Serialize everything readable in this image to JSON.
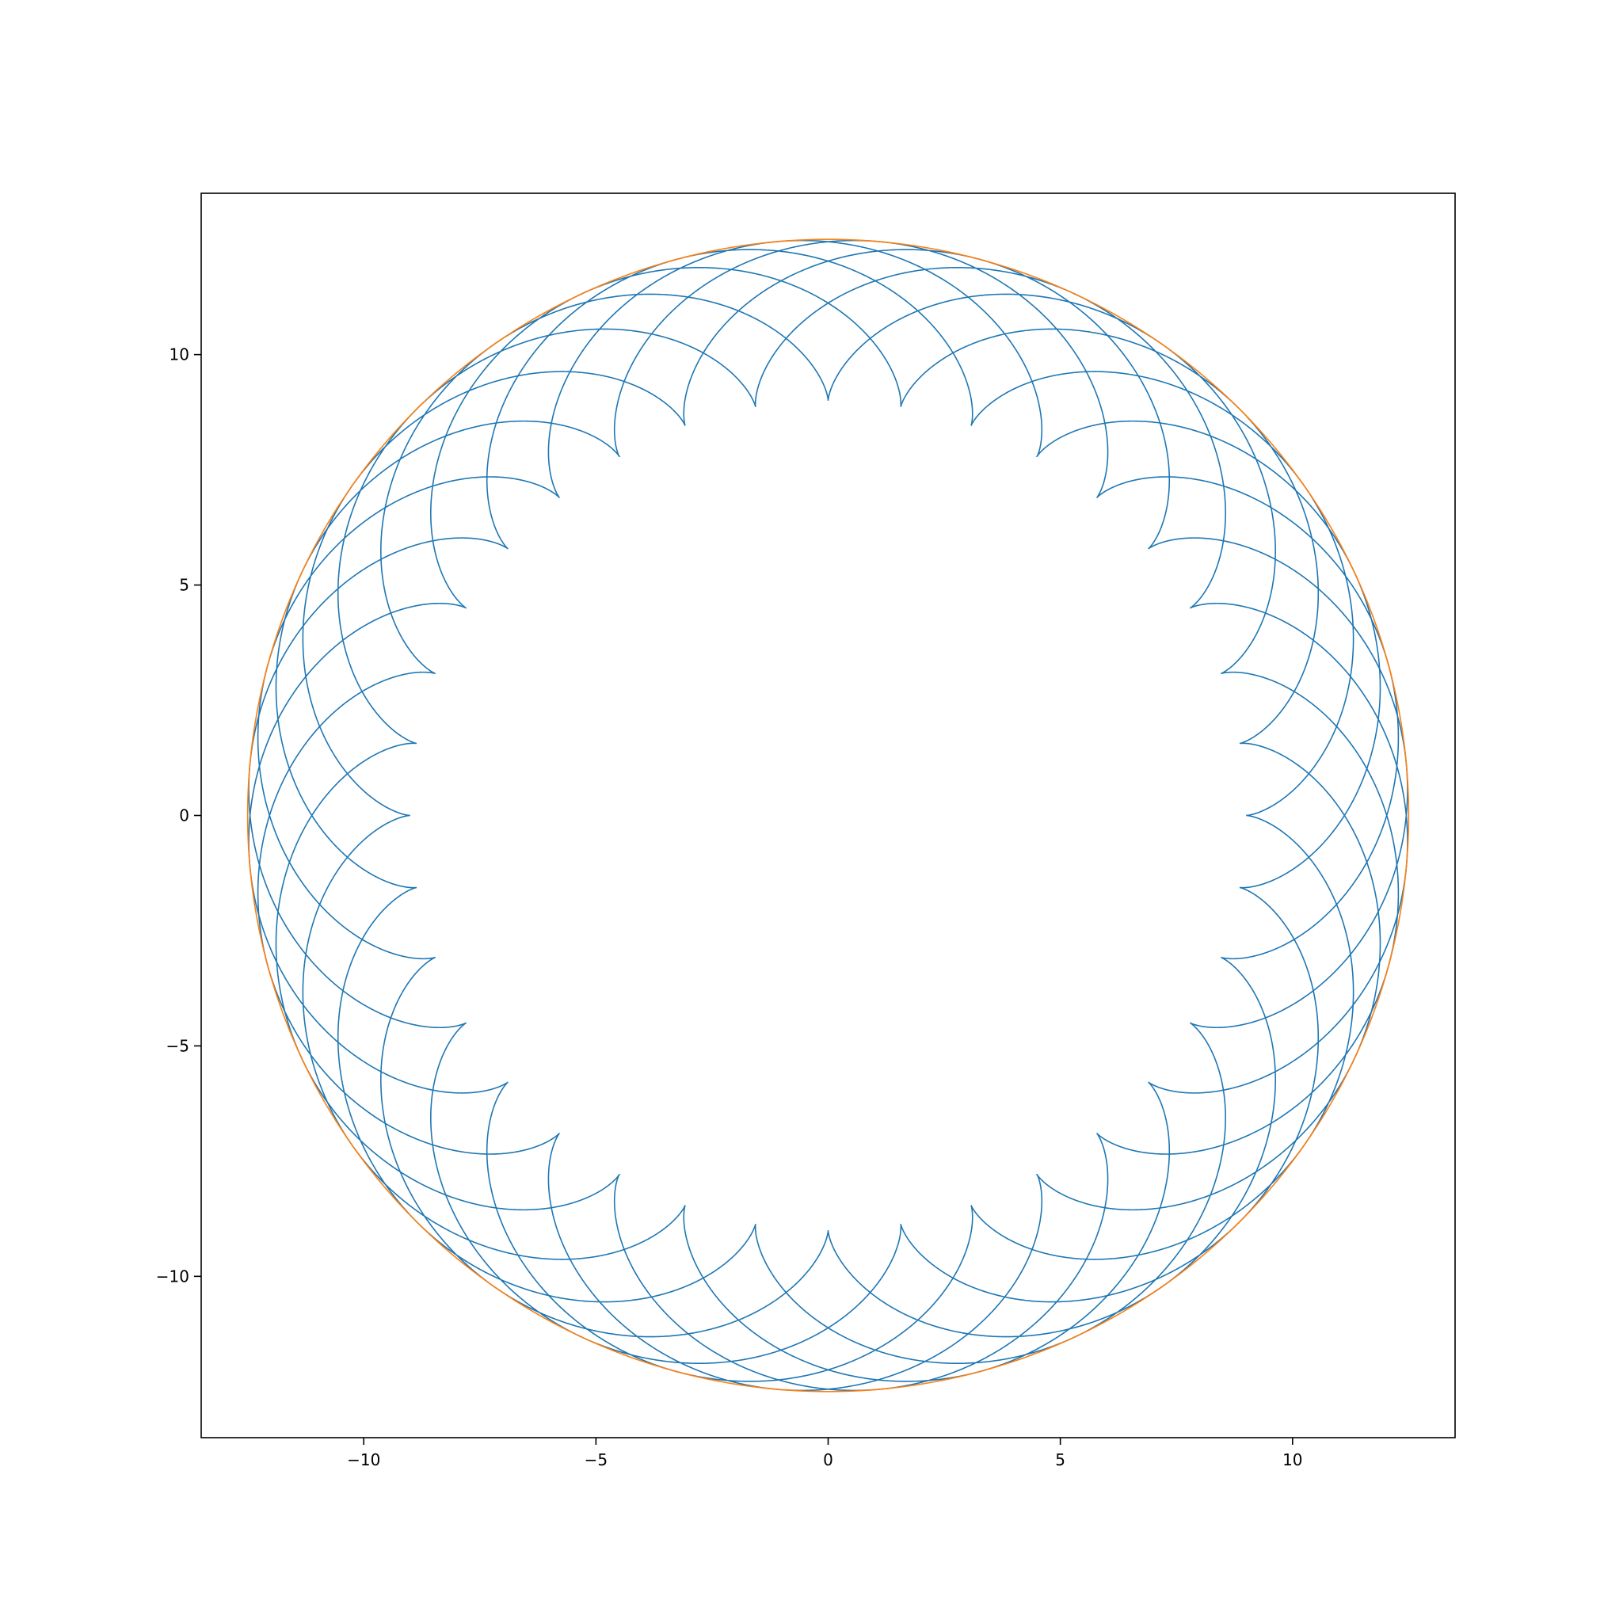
{
  "chart_data": {
    "type": "line",
    "title": "",
    "xlabel": "",
    "ylabel": "",
    "xlim": [
      -13.5,
      13.5
    ],
    "ylim": [
      -13.5,
      13.5
    ],
    "grid": false,
    "legend": "none",
    "x_ticks": [
      {
        "value": -10,
        "label": "−10"
      },
      {
        "value": -5,
        "label": "−5"
      },
      {
        "value": 0,
        "label": "0"
      },
      {
        "value": 5,
        "label": "5"
      },
      {
        "value": 10,
        "label": "10"
      }
    ],
    "y_ticks": [
      {
        "value": 10,
        "label": "10"
      },
      {
        "value": 5,
        "label": "5"
      },
      {
        "value": 0,
        "label": "0"
      },
      {
        "value": -5,
        "label": "−5"
      },
      {
        "value": -10,
        "label": "−10"
      }
    ],
    "series": [
      {
        "name": "epicycloid",
        "color": "#1f77b4",
        "curve": "epicycloid",
        "fixed_circle_radius": 9,
        "rolling_circle_radius": 1.75,
        "cusps": 36,
        "outer_radius": 12.5,
        "inner_radius": 9
      },
      {
        "name": "bounding circle",
        "color": "#ff7f0e",
        "curve": "circle",
        "center": [
          0,
          0
        ],
        "radius": 12.5
      }
    ]
  }
}
